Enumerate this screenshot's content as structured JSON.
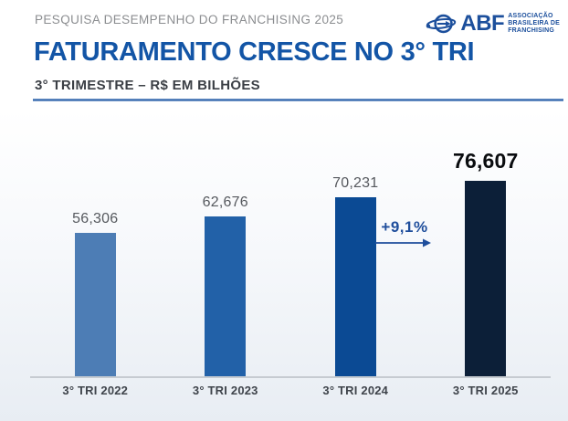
{
  "header": {
    "kicker": "PESQUISA DESEMPENHO DO FRANCHISING 2025",
    "title": "FATURAMENTO CRESCE NO 3° TRI",
    "subtitle": "3° TRIMESTRE – R$ EM BILHÕES"
  },
  "logo": {
    "abbr": "ABF",
    "tagline": [
      "ASSOCIAÇÃO",
      "BRASILEIRA DE",
      "FRANCHISING"
    ],
    "color": "#1c4f9c"
  },
  "chart_data": {
    "type": "bar",
    "title": "FATURAMENTO CRESCE NO 3° TRI",
    "subtitle": "3° TRIMESTRE – R$ EM BILHÕES",
    "unit": "R$ em bilhões",
    "categories": [
      "3° TRI 2022",
      "3° TRI 2023",
      "3° TRI 2024",
      "3° TRI 2025"
    ],
    "values": [
      56.306,
      62.676,
      70.231,
      76.607
    ],
    "value_labels": [
      "56,306",
      "62,676",
      "70,231",
      "76,607"
    ],
    "bar_colors": [
      "#4d7db5",
      "#2261a8",
      "#0b4a94",
      "#0c1f38"
    ],
    "highlight_index": 3,
    "annotation": {
      "label": "+9,1%",
      "from": "3° TRI 2024",
      "to": "3° TRI 2025",
      "color": "#1f4e9c"
    },
    "ylim": [
      0,
      80
    ],
    "grid": false,
    "legend": false
  }
}
